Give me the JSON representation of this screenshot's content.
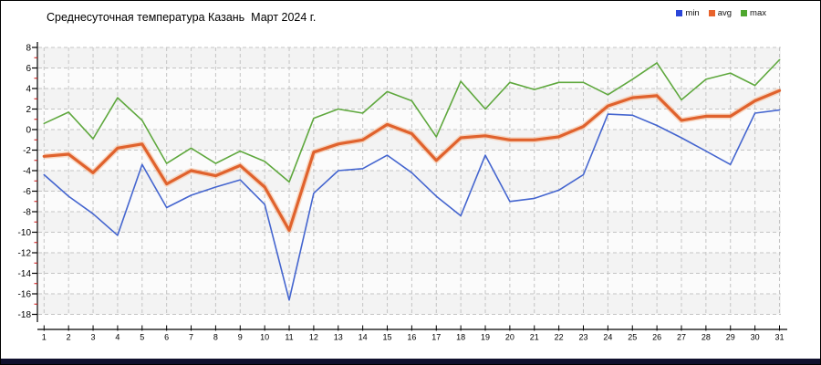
{
  "page": {
    "title": "Среднесуточная температура Казань  Март 2024 г."
  },
  "legend": {
    "items": [
      {
        "label": "min",
        "color": "#2b46d9"
      },
      {
        "label": "avg",
        "color": "#e8632c"
      },
      {
        "label": "max",
        "color": "#4ea72e"
      }
    ]
  },
  "chart_data": {
    "type": "line",
    "title": "Среднесуточная температура Казань  Март 2024 г.",
    "x": [
      1,
      2,
      3,
      4,
      5,
      6,
      7,
      8,
      9,
      10,
      11,
      12,
      13,
      14,
      15,
      16,
      17,
      18,
      19,
      20,
      21,
      22,
      23,
      24,
      25,
      26,
      27,
      28,
      29,
      30,
      31
    ],
    "series": [
      {
        "name": "max",
        "color": "#5fa83e",
        "width": 1.6,
        "values": [
          0.6,
          1.7,
          -0.9,
          3.1,
          0.9,
          -3.3,
          -1.8,
          -3.3,
          -2.1,
          -3.1,
          -5.1,
          1.1,
          2.0,
          1.6,
          3.7,
          2.8,
          -0.7,
          4.7,
          2.0,
          4.6,
          3.9,
          4.6,
          4.6,
          3.4,
          4.9,
          6.5,
          2.9,
          4.9,
          5.5,
          4.3,
          6.8
        ]
      },
      {
        "name": "min",
        "color": "#4465cf",
        "width": 1.6,
        "values": [
          -4.4,
          -6.5,
          -8.2,
          -10.3,
          -3.4,
          -7.6,
          -6.4,
          -5.6,
          -4.9,
          -7.3,
          -16.6,
          -6.2,
          -4.0,
          -3.8,
          -2.5,
          -4.2,
          -6.5,
          -8.4,
          -2.5,
          -7.0,
          -6.7,
          -5.9,
          -4.4,
          1.5,
          1.4,
          0.4,
          -0.8,
          -2.1,
          -3.4,
          1.6,
          1.9
        ]
      },
      {
        "name": "avg",
        "color": "#e0622d",
        "width": 3.2,
        "halo": "#f5bd99",
        "values": [
          -2.6,
          -2.4,
          -4.2,
          -1.8,
          -1.4,
          -5.3,
          -4.0,
          -4.5,
          -3.5,
          -5.6,
          -9.8,
          -2.2,
          -1.4,
          -1.0,
          0.5,
          -0.4,
          -3.0,
          -0.8,
          -0.6,
          -1.0,
          -1.0,
          -0.7,
          0.3,
          2.3,
          3.1,
          3.3,
          0.9,
          1.3,
          1.3,
          2.8,
          3.8
        ]
      }
    ],
    "ylim": [
      -18,
      8
    ],
    "y_ticks": [
      8,
      6,
      4,
      2,
      0,
      -2,
      -4,
      -6,
      -8,
      -10,
      -12,
      -14,
      -16,
      -18
    ],
    "y_minor_ticks": [
      7,
      5,
      3,
      1,
      -1,
      -3,
      -5,
      -7,
      -9,
      -11,
      -13,
      -15,
      -17
    ],
    "grid": true,
    "legend_position": "top-right"
  },
  "colors": {
    "grid": "#c4c4c4",
    "axis": "#000000",
    "minor_tick": "#cc1111",
    "stripe_dark": "#f3f3f3",
    "stripe_light": "#fbfbfb",
    "footer": "#10102e",
    "tick_label": "#000000"
  }
}
